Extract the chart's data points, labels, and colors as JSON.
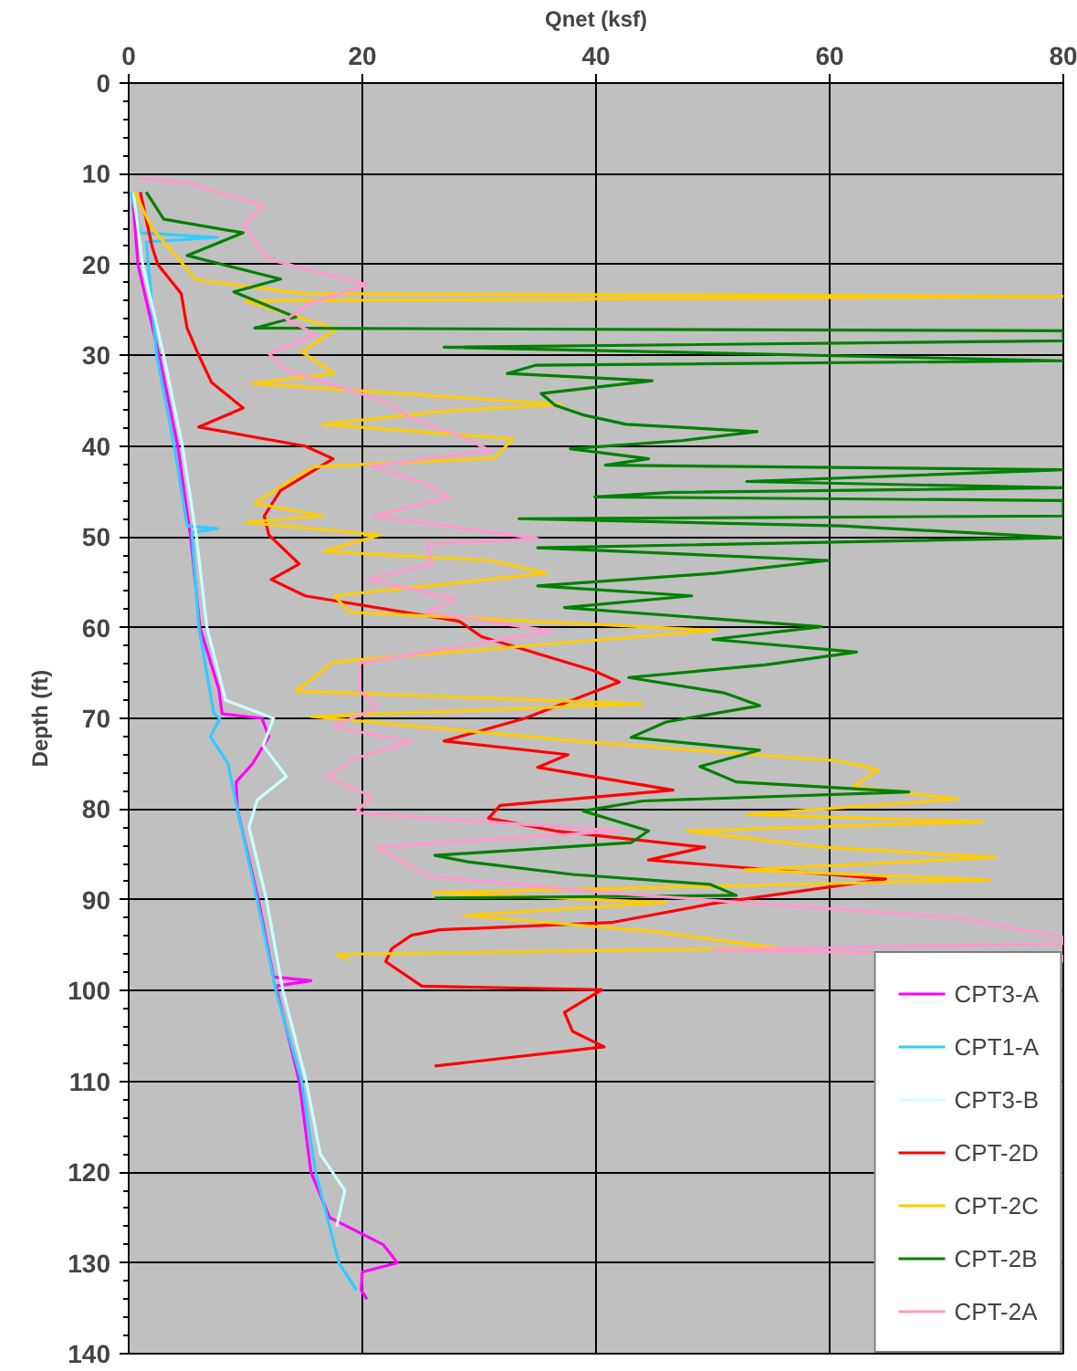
{
  "chart_data": {
    "type": "line",
    "xlabel": "Qnet (ksf)",
    "ylabel": "Depth (ft)",
    "xlim": [
      0,
      80
    ],
    "xticks": [
      0,
      20,
      40,
      60,
      80
    ],
    "ylim": [
      140,
      0
    ],
    "yticks": [
      0,
      10,
      20,
      30,
      40,
      50,
      60,
      70,
      80,
      90,
      100,
      110,
      120,
      130,
      140
    ],
    "grid": true,
    "legend": "bottom right",
    "marker": "none",
    "line_style": "solid",
    "series": [
      {
        "name": "CPT3-A",
        "color": "#ff00ff",
        "x": [
          0.3,
          0.8,
          2.6,
          4.2,
          5.3,
          6.1,
          7.7,
          8.0,
          11.4,
          12.0,
          10.6,
          9.2,
          9.3,
          11.1,
          12.4,
          15.6,
          12.6,
          14.6,
          15.6,
          17.2,
          21.8,
          23.0,
          20.0,
          19.9,
          20.4
        ],
        "values": [
          12,
          20,
          30,
          40,
          50,
          60,
          66.7,
          69.5,
          70,
          72,
          75,
          77,
          80,
          90,
          98.5,
          98.9,
          99.5,
          110,
          120,
          125,
          128,
          130,
          131,
          133,
          134
        ]
      },
      {
        "name": "CPT1-A",
        "color": "#33ccff",
        "x": [
          0.2,
          1.0,
          7.6,
          1.5,
          2.4,
          3.9,
          5.0,
          7.6,
          5.4,
          6.0,
          7.3,
          7.8,
          7.0,
          8.5,
          9.3,
          11.0,
          12.6,
          14.8,
          16.0,
          18.0,
          19.5
        ],
        "values": [
          12,
          16.5,
          17,
          17.5,
          30,
          40,
          48.8,
          49.1,
          49.5,
          60,
          69.5,
          70,
          72,
          75,
          80,
          90,
          100,
          110,
          120,
          130,
          133
        ]
      },
      {
        "name": "CPT3-B",
        "color": "#ccffff",
        "x": [
          0.4,
          1.2,
          3.0,
          4.6,
          5.8,
          6.7,
          8.3,
          12.4,
          11.5,
          13.5,
          11.0,
          10.3,
          11.8,
          13.2,
          15.2,
          16.4,
          18.5,
          17.8
        ],
        "values": [
          12,
          20,
          30,
          40,
          50,
          60,
          68,
          70,
          73,
          76.4,
          79,
          82,
          90,
          100,
          110,
          118,
          122,
          126
        ]
      },
      {
        "name": "CPT-2D",
        "color": "#ff0000",
        "x": [
          1.0,
          2.0,
          2.5,
          4.5,
          5.0,
          6.0,
          7.1,
          9.8,
          6.0,
          15.1,
          17.5,
          13.0,
          11.6,
          12.0,
          14.6,
          12.2,
          15.1,
          28.3,
          30.2,
          39.7,
          42.0,
          33.9,
          27.0,
          37.6,
          35.0,
          46.6,
          31.8,
          30.8,
          36.5,
          49.3,
          44.5,
          64.8,
          50.0,
          41.3,
          26.6,
          24.2,
          22.5,
          22.0,
          25.1,
          40.5,
          37.3,
          38.0,
          40.7,
          26.2
        ],
        "values": [
          12,
          18,
          20,
          23.2,
          27,
          30,
          33,
          35.8,
          37.9,
          40,
          41.4,
          44.9,
          47.7,
          49.8,
          53,
          54.7,
          56.5,
          59.3,
          61,
          64.7,
          66,
          70,
          72.5,
          74,
          75.4,
          77.9,
          79.6,
          81,
          82.4,
          84.2,
          85.6,
          87.7,
          90.4,
          92.5,
          93.3,
          93.9,
          95.4,
          96.8,
          99.5,
          99.9,
          102.4,
          104.5,
          106.2,
          108.3
        ]
      },
      {
        "name": "CPT-2C",
        "color": "#ffcc00",
        "x": [
          0.5,
          2.0,
          5.8,
          15.0,
          80.0,
          10.0,
          17.8,
          14.8,
          17.6,
          10.6,
          37.0,
          26.6,
          16.6,
          32.9,
          31.3,
          15.7,
          10.8,
          16.6,
          10.0,
          21.5,
          16.7,
          31.0,
          35.8,
          17.6,
          18.9,
          50.3,
          26.6,
          17.5,
          14.3,
          44.0,
          15.6,
          39.2,
          60.9,
          64.2,
          62.0,
          71.0,
          53.0,
          73.1,
          47.8,
          59.5,
          74.2,
          52.7,
          73.7,
          26.0,
          46.0,
          28.7,
          45.0,
          55.6,
          17.8,
          18.8
        ],
        "values": [
          12,
          16,
          21.7,
          23.2,
          23.5,
          24,
          27.1,
          29.6,
          32,
          33.1,
          35.4,
          36.2,
          37.6,
          39.2,
          41.3,
          42.3,
          46.3,
          47.7,
          48.4,
          49.8,
          51.6,
          52.6,
          54,
          56.5,
          58.3,
          60.3,
          62.8,
          63.8,
          67,
          68.4,
          69.8,
          72.6,
          74.7,
          75.7,
          77.5,
          78.9,
          80.6,
          81.4,
          82.4,
          84.2,
          85.3,
          86.7,
          87.8,
          89.2,
          90.3,
          91.7,
          93.5,
          95.3,
          96.0,
          96.6
        ]
      },
      {
        "name": "CPT-2B",
        "color": "#008000",
        "x": [
          1.5,
          3.0,
          9.8,
          5.0,
          13.0,
          9.0,
          14.3,
          10.8,
          80.0,
          80.0,
          27.0,
          80.0,
          34.8,
          32.4,
          44.8,
          35.3,
          36.5,
          39.0,
          42.6,
          53.8,
          47.3,
          37.8,
          44.5,
          40.8,
          80.0,
          52.9,
          80.0,
          46.5,
          39.9,
          80.0,
          80.0,
          33.4,
          61.0,
          80.0,
          35.0,
          59.9,
          50.3,
          35.0,
          48.2,
          37.3,
          59.3,
          50.0,
          62.3,
          54.5,
          42.8,
          51.0,
          54.0,
          46.0,
          43.0,
          54.0,
          48.9,
          52.0,
          66.8,
          44.0,
          38.9,
          44.5,
          43.0,
          26.2,
          29.0,
          38.0,
          49.8,
          52.0,
          26.2
        ],
        "values": [
          12,
          15,
          16.5,
          19,
          21.6,
          23,
          25.8,
          27,
          27.3,
          28.4,
          29.1,
          30.6,
          31.1,
          32,
          32.8,
          34.2,
          35.5,
          36.6,
          37.6,
          38.4,
          39.4,
          40.3,
          41.4,
          42.1,
          42.6,
          43.9,
          44.6,
          45.1,
          45.6,
          46.0,
          47.7,
          48.0,
          48.8,
          50.1,
          51.2,
          52.6,
          54,
          55.4,
          56.5,
          57.8,
          59.9,
          61.3,
          62.7,
          64.1,
          65.5,
          67.2,
          68.6,
          70.4,
          72.1,
          73.5,
          75.3,
          77,
          78.1,
          79.1,
          80.2,
          82.4,
          83.7,
          85.1,
          85.8,
          87.2,
          88.3,
          89.5,
          89.8
        ]
      },
      {
        "name": "CPT-2A",
        "color": "#ff99cc",
        "x": [
          1.0,
          5.0,
          11.6,
          9.8,
          11.9,
          20.4,
          15.7,
          13.5,
          16.0,
          12.0,
          13.5,
          17.6,
          22.0,
          24.2,
          27.8,
          31.0,
          20.7,
          24.9,
          27.5,
          21.0,
          35.0,
          25.5,
          26.0,
          20.5,
          28.0,
          25.5,
          36.3,
          19.8,
          19.8,
          21.3,
          17.5,
          24.2,
          19.4,
          17.0,
          20.8,
          19.4,
          42.0,
          21.3,
          25.6,
          40.8,
          71.0,
          80.0,
          80.0,
          50.0,
          80.0,
          80.0
        ],
        "values": [
          10.5,
          11,
          13.5,
          15.6,
          19.4,
          22.2,
          24.2,
          26,
          27.7,
          29.8,
          31.6,
          33.3,
          35.1,
          36.9,
          38.6,
          40.5,
          42.2,
          43.9,
          45.6,
          47.7,
          50.2,
          50.8,
          53,
          54.7,
          56.8,
          58.3,
          60.4,
          63.9,
          67,
          68.8,
          70.9,
          72.6,
          74.4,
          76.5,
          78.6,
          80.4,
          82.4,
          84.2,
          87.4,
          89.2,
          92,
          94.1,
          94.8,
          95.5,
          96.2,
          96.9
        ]
      }
    ]
  }
}
